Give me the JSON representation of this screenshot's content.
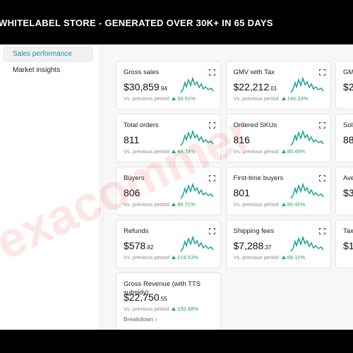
{
  "banner": {
    "title": "WHITELABEL STORE - GENERATED OVER 30K+ IN 65 DAYS"
  },
  "sidebar": {
    "items": [
      "Sales performance",
      "Market insights"
    ]
  },
  "compare_label": "Vs. previous period",
  "watermark": "exacommer",
  "cards": [
    {
      "title": "Gross sales",
      "value": "$30,859",
      "cents": ".94",
      "change": "93.91%"
    },
    {
      "title": "GMV with Tax",
      "value": "$22,212",
      "cents": ".01",
      "change": "146.33%"
    },
    {
      "title": "GM",
      "value": "$2"
    },
    {
      "title": "Total orders",
      "value": "811",
      "change": "84.74%"
    },
    {
      "title": "Ordered SKUs",
      "value": "816",
      "change": "85.45%"
    },
    {
      "title": "Sol",
      "value": "88"
    },
    {
      "title": "Buyers",
      "value": "806",
      "change": "85.71%"
    },
    {
      "title": "First-time buyers",
      "value": "801",
      "change": "85.42%"
    },
    {
      "title": "Ave",
      "value": "$3"
    },
    {
      "title": "Refunds",
      "value": "$578",
      "cents": ".82",
      "change": "219.53%"
    },
    {
      "title": "Shipping fees",
      "value": "$7,288",
      "cents": ".37",
      "change": "89.12%"
    },
    {
      "title": "Tax",
      "value": "$1,"
    },
    {
      "title": "Gross Revenue (with TTS subsidy)",
      "value": "$22,750",
      "cents": ".55",
      "change": "150.68%",
      "link": "Breakdown ›"
    }
  ]
}
